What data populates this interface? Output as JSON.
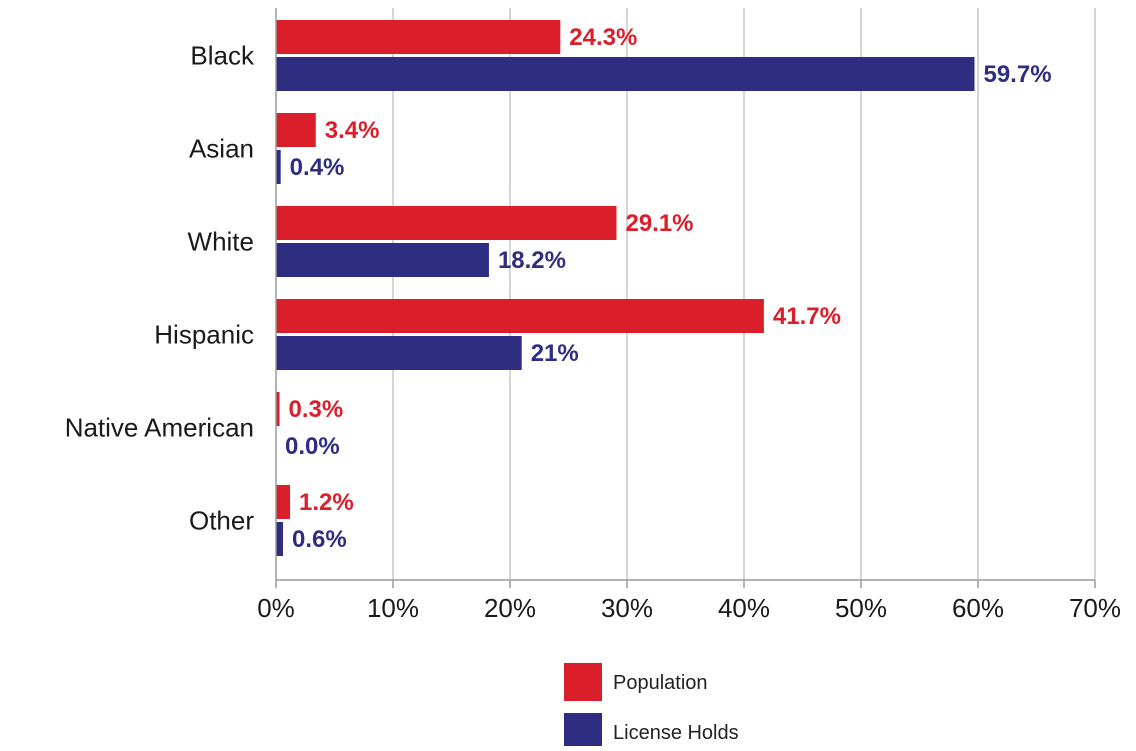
{
  "chart_data": {
    "type": "bar",
    "orientation": "horizontal",
    "categories": [
      "Black",
      "Asian",
      "White",
      "Hispanic",
      "Native American",
      "Other"
    ],
    "series": [
      {
        "name": "Population",
        "color": "#da1f2a",
        "values": [
          24.3,
          3.4,
          29.1,
          41.7,
          0.3,
          1.2
        ],
        "labels": [
          "24.3%",
          "3.4%",
          "29.1%",
          "41.7%",
          "0.3%",
          "1.2%"
        ]
      },
      {
        "name": "License Holds",
        "color": "#2e2d82",
        "values": [
          59.7,
          0.4,
          18.2,
          21,
          0.0,
          0.6
        ],
        "labels": [
          "59.7%",
          "0.4%",
          "18.2%",
          "21%",
          "0.0%",
          "0.6%"
        ]
      }
    ],
    "xlim": [
      0,
      70
    ],
    "ticks": [
      0,
      10,
      20,
      30,
      40,
      50,
      60,
      70
    ],
    "tick_labels": [
      "0%",
      "10%",
      "20%",
      "30%",
      "40%",
      "50%",
      "60%",
      "70%"
    ],
    "title": "",
    "xlabel": "",
    "ylabel": "",
    "grid": "vertical",
    "legend": "bottom-center"
  }
}
